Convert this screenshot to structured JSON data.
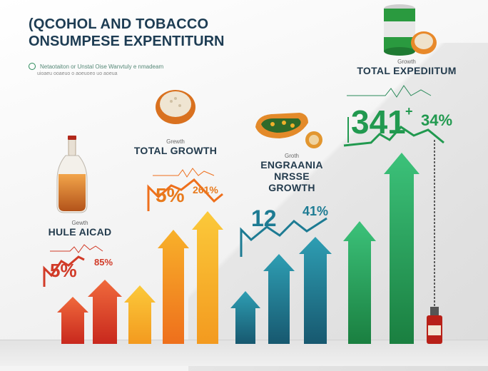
{
  "header": {
    "title_line1": "(QCOHOL AND TOBACCO",
    "title_line2": "ONSUMPESE EXPENTITURN",
    "subtitle": "Netaotaiton or Unstal Oise Wanvtuly e nmadeam",
    "subtitle_note": "uioaeu ooaeuo o aoeuoeo uo aoeua"
  },
  "groups": [
    {
      "id": "hule",
      "small": "Gewth",
      "label": "HULE AICAD",
      "primary": "5%",
      "secondary": "85%",
      "note": "··· ·· ·· ··· ·· ···· · ···",
      "color": "#d13b28"
    },
    {
      "id": "total-growth",
      "small": "Grewth",
      "label": "TOTAL GROWTH",
      "primary": "5%",
      "secondary": "261%",
      "note": "··· ·· ··· ·· ··· ·· ···",
      "color": "#e87a1c"
    },
    {
      "id": "engrania",
      "small": "Groth",
      "label": "ENGRAANIA NRSSE",
      "label2": "GROWTH",
      "primary": "12",
      "secondary": "41%",
      "note": "·· ·· ··· ·· ··· ···· ··",
      "color": "#1d7b93"
    },
    {
      "id": "total-expenditure",
      "small": "Growth",
      "label": "TOTAL EXPEDIITUM",
      "primary": "341",
      "plus": "+",
      "secondary": "34%",
      "note": "···· ·· ···· ·· ·····",
      "color": "#21994f"
    }
  ],
  "colors": {
    "navy": "#1d3c53",
    "red": "#d13b28",
    "orange": "#f08a1c",
    "teal": "#1d7b93",
    "green": "#21994f"
  },
  "icons": [
    "bottle-icon",
    "bread-bowl-icon",
    "snack-tray-icon",
    "can-icon",
    "small-bottle-icon"
  ]
}
